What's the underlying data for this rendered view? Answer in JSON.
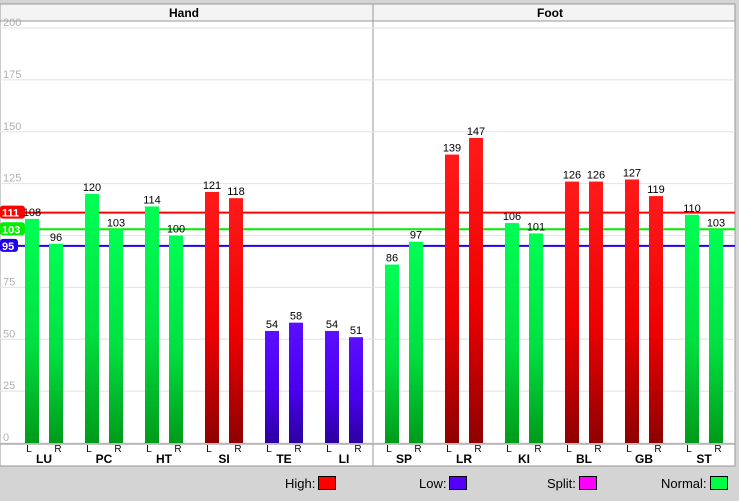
{
  "chart_data": {
    "type": "bar",
    "panels": [
      "Hand",
      "Foot"
    ],
    "groups": [
      "LU",
      "PC",
      "HT",
      "SI",
      "TE",
      "LI",
      "SP",
      "LR",
      "KI",
      "BL",
      "GB",
      "ST"
    ],
    "sides": [
      "L",
      "R"
    ],
    "values": [
      [
        108,
        96
      ],
      [
        120,
        103
      ],
      [
        114,
        100
      ],
      [
        121,
        118
      ],
      [
        54,
        58
      ],
      [
        54,
        51
      ],
      [
        86,
        97
      ],
      [
        139,
        147
      ],
      [
        106,
        101
      ],
      [
        126,
        126
      ],
      [
        127,
        119
      ],
      [
        110,
        103
      ]
    ],
    "status": [
      [
        "normal",
        "normal"
      ],
      [
        "normal",
        "normal"
      ],
      [
        "normal",
        "normal"
      ],
      [
        "high",
        "high"
      ],
      [
        "low",
        "low"
      ],
      [
        "low",
        "low"
      ],
      [
        "normal",
        "normal"
      ],
      [
        "high",
        "high"
      ],
      [
        "normal",
        "normal"
      ],
      [
        "high",
        "high"
      ],
      [
        "high",
        "high"
      ],
      [
        "normal",
        "normal"
      ]
    ],
    "yticks": [
      0,
      25,
      50,
      75,
      100,
      125,
      150,
      175,
      200
    ],
    "ylim": [
      0,
      200
    ],
    "reference_lines": [
      {
        "value": 111,
        "label": "111",
        "kind": "high",
        "color": "#ff0000"
      },
      {
        "value": 103,
        "label": "103",
        "kind": "normal",
        "color": "#00ee00"
      },
      {
        "value": 95,
        "label": "95",
        "kind": "low",
        "color": "#2200ee"
      }
    ],
    "colors": {
      "high": "#ff0000",
      "low": "#5500ff",
      "split": "#ff00ff",
      "normal": "#00ff44"
    }
  },
  "legend": [
    {
      "label": "High:",
      "color": "#ff0000"
    },
    {
      "label": "Low:",
      "color": "#5500ff"
    },
    {
      "label": "Split:",
      "color": "#ff00ff"
    },
    {
      "label": "Normal:",
      "color": "#00ff44"
    }
  ]
}
